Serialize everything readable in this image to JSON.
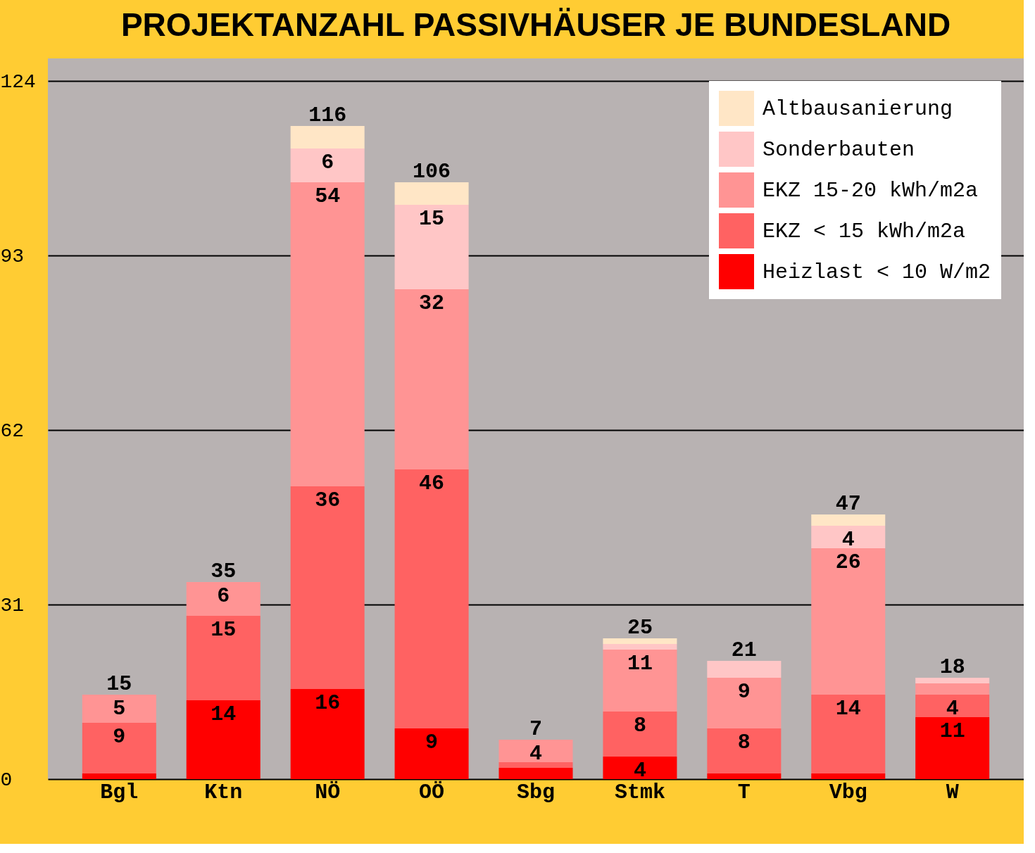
{
  "chart_data": {
    "type": "bar",
    "title": "PROJEKTANZAHL PASSIVHÄUSER JE BUNDESLAND",
    "categories": [
      "Bgl",
      "Ktn",
      "NÖ",
      "OÖ",
      "Sbg",
      "Stmk",
      "T",
      "Vbg",
      "W"
    ],
    "stacked": true,
    "series": [
      {
        "name": "Heizlast < 10 W/m2",
        "color": "#ff0000",
        "values": [
          1,
          14,
          16,
          9,
          2,
          4,
          1,
          1,
          11
        ],
        "value_labels": [
          null,
          "14",
          "16",
          "9",
          null,
          "4",
          null,
          null,
          "11"
        ]
      },
      {
        "name": "EKZ < 15 kWh/m2a",
        "color": "#ff6262",
        "values": [
          9,
          15,
          36,
          46,
          1,
          8,
          8,
          14,
          4
        ],
        "value_labels": [
          "9",
          "15",
          "36",
          "46",
          null,
          "8",
          "8",
          "14",
          "4"
        ]
      },
      {
        "name": "EKZ 15-20 kWh/m2a",
        "color": "#ff9494",
        "values": [
          5,
          6,
          54,
          32,
          4,
          11,
          9,
          26,
          2
        ],
        "value_labels": [
          "5",
          "6",
          "54",
          "32",
          "4",
          "11",
          "9",
          "26",
          null
        ]
      },
      {
        "name": "Sonderbauten",
        "color": "#ffc6c6",
        "values": [
          0,
          0,
          6,
          15,
          0,
          1,
          3,
          4,
          1
        ],
        "value_labels": [
          null,
          null,
          "6",
          "15",
          null,
          null,
          null,
          "4",
          null
        ]
      },
      {
        "name": "Altbausanierung",
        "color": "#ffe6c6",
        "values": [
          0,
          0,
          4,
          4,
          0,
          1,
          0,
          2,
          0
        ],
        "value_labels": [
          null,
          null,
          null,
          null,
          null,
          null,
          null,
          null,
          null
        ]
      }
    ],
    "totals": [
      "15",
      "35",
      "116",
      "106",
      "7",
      "25",
      "21",
      "47",
      "18"
    ],
    "ylim": [
      0,
      128
    ],
    "yticks": [
      0,
      31,
      62,
      93,
      124
    ],
    "grid": "y",
    "legend": "top right"
  }
}
